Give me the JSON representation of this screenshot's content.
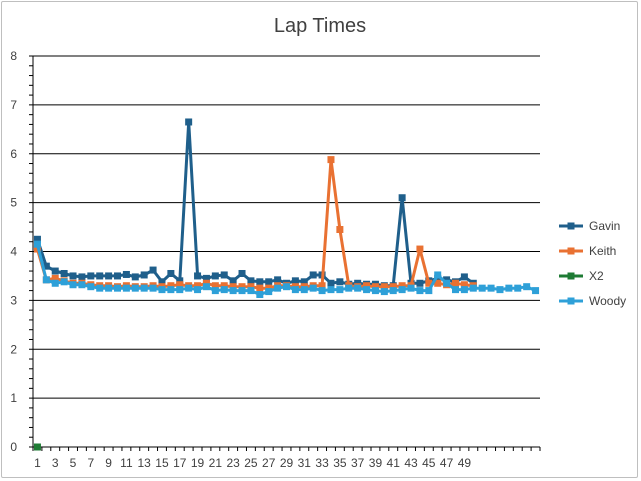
{
  "chart_data": {
    "type": "line",
    "title": "Lap Times",
    "ylim": [
      0,
      8
    ],
    "y_ticks": [
      0,
      1,
      2,
      3,
      4,
      5,
      6,
      7,
      8
    ],
    "x_range": [
      1,
      57
    ],
    "x_tick_labels": [
      1,
      3,
      5,
      7,
      9,
      11,
      13,
      15,
      17,
      19,
      21,
      23,
      25,
      27,
      29,
      31,
      33,
      35,
      37,
      39,
      41,
      43,
      45,
      47,
      49
    ],
    "grid": "horizontal",
    "legend_position": "right",
    "series": [
      {
        "name": "Gavin",
        "color": "#1f5f8b",
        "x": [
          1,
          2,
          3,
          4,
          5,
          6,
          7,
          8,
          9,
          10,
          11,
          12,
          13,
          14,
          15,
          16,
          17,
          18,
          19,
          20,
          21,
          22,
          23,
          24,
          25,
          26,
          27,
          28,
          29,
          30,
          31,
          32,
          33,
          34,
          35,
          36,
          37,
          38,
          39,
          40,
          41,
          42,
          43,
          44,
          45,
          46,
          47,
          48,
          49,
          50
        ],
        "values": [
          4.25,
          3.7,
          3.6,
          3.55,
          3.5,
          3.48,
          3.5,
          3.5,
          3.5,
          3.5,
          3.53,
          3.48,
          3.52,
          3.62,
          3.38,
          3.55,
          3.4,
          6.65,
          3.5,
          3.45,
          3.5,
          3.52,
          3.4,
          3.55,
          3.4,
          3.38,
          3.38,
          3.42,
          3.35,
          3.4,
          3.38,
          3.52,
          3.52,
          3.35,
          3.38,
          3.33,
          3.35,
          3.33,
          3.33,
          3.3,
          3.3,
          5.1,
          3.35,
          3.35,
          3.4,
          3.45,
          3.42,
          3.38,
          3.48,
          3.35
        ]
      },
      {
        "name": "Keith",
        "color": "#e97132",
        "x": [
          1,
          2,
          3,
          4,
          5,
          6,
          7,
          8,
          9,
          10,
          11,
          12,
          13,
          14,
          15,
          16,
          17,
          18,
          19,
          20,
          21,
          22,
          23,
          24,
          25,
          26,
          27,
          28,
          29,
          30,
          31,
          32,
          33,
          34,
          35,
          36,
          37,
          38,
          39,
          40,
          41,
          42,
          43,
          44,
          45,
          46,
          47,
          48,
          49,
          50
        ],
        "values": [
          4.05,
          3.42,
          3.45,
          3.4,
          3.35,
          3.35,
          3.32,
          3.3,
          3.3,
          3.28,
          3.3,
          3.28,
          3.28,
          3.3,
          3.28,
          3.3,
          3.32,
          3.3,
          3.3,
          3.35,
          3.3,
          3.3,
          3.28,
          3.28,
          3.28,
          3.25,
          3.25,
          3.3,
          3.3,
          3.28,
          3.28,
          3.3,
          3.3,
          5.88,
          4.45,
          3.3,
          3.28,
          3.3,
          3.28,
          3.28,
          3.28,
          3.3,
          3.3,
          4.05,
          3.35,
          3.35,
          3.32,
          3.35,
          3.32,
          3.3
        ]
      },
      {
        "name": "X2",
        "color": "#1e7b34",
        "x": [
          1
        ],
        "values": [
          0
        ]
      },
      {
        "name": "Woody",
        "color": "#2ea0d8",
        "x": [
          1,
          2,
          3,
          4,
          5,
          6,
          7,
          8,
          9,
          10,
          11,
          12,
          13,
          14,
          15,
          16,
          17,
          18,
          19,
          20,
          21,
          22,
          23,
          24,
          25,
          26,
          27,
          28,
          29,
          30,
          31,
          32,
          33,
          34,
          35,
          36,
          37,
          38,
          39,
          40,
          41,
          42,
          43,
          44,
          45,
          46,
          47,
          48,
          49,
          50,
          51,
          52,
          53,
          54,
          55,
          56,
          57
        ],
        "values": [
          4.15,
          3.42,
          3.35,
          3.38,
          3.32,
          3.32,
          3.28,
          3.25,
          3.25,
          3.25,
          3.25,
          3.25,
          3.25,
          3.25,
          3.22,
          3.22,
          3.22,
          3.25,
          3.22,
          3.28,
          3.2,
          3.22,
          3.2,
          3.2,
          3.2,
          3.12,
          3.18,
          3.25,
          3.28,
          3.22,
          3.22,
          3.25,
          3.2,
          3.22,
          3.22,
          3.25,
          3.25,
          3.22,
          3.2,
          3.18,
          3.2,
          3.22,
          3.25,
          3.2,
          3.2,
          3.52,
          3.35,
          3.22,
          3.22,
          3.25,
          3.25,
          3.25,
          3.22,
          3.25,
          3.25,
          3.28,
          3.2
        ]
      }
    ]
  }
}
